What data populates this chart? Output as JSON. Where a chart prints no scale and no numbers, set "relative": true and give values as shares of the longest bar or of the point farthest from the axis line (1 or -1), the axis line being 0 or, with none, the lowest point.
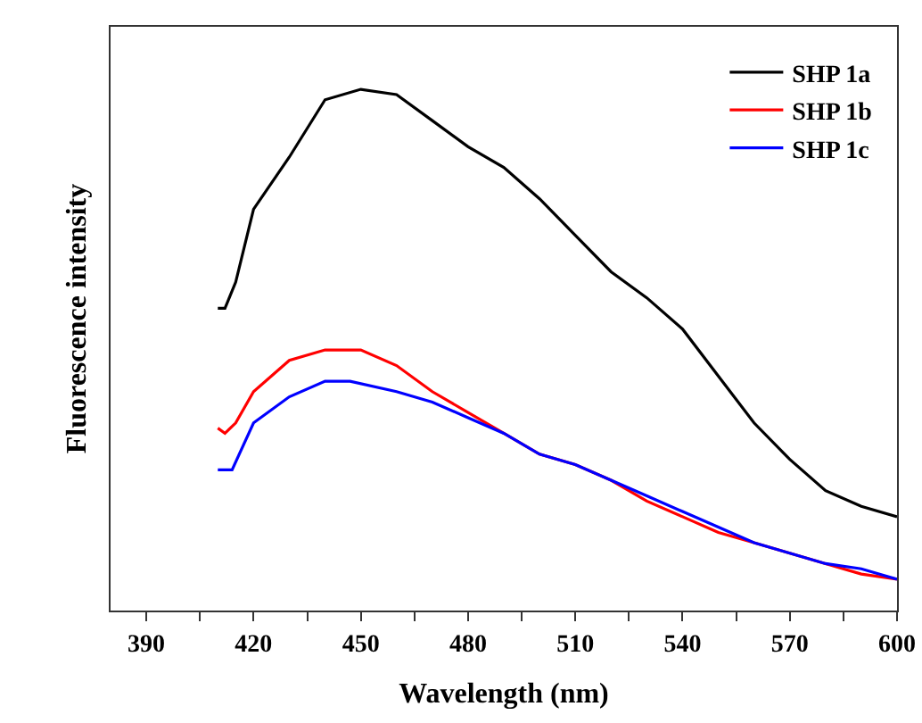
{
  "chart_data": {
    "type": "line",
    "relative": true,
    "xlabel": "Wavelength (nm)",
    "ylabel": "Fluorescence intensity",
    "xlim": [
      380,
      600
    ],
    "xticks": [
      390,
      {
        "value": 405,
        "label": null
      },
      420,
      {
        "value": 435,
        "label": null
      },
      450,
      {
        "value": 465,
        "label": null
      },
      480,
      {
        "value": 495,
        "label": null
      },
      510,
      {
        "value": 525,
        "label": null
      },
      540,
      {
        "value": 555,
        "label": null
      },
      570,
      {
        "value": 585,
        "label": null
      },
      600
    ],
    "legend": "top right",
    "grid": false,
    "marker": "none",
    "line_style": "solid",
    "series": [
      {
        "name": "SHP 1a",
        "color": "#000000",
        "x": [
          410,
          412,
          415,
          420,
          430,
          440,
          450,
          460,
          470,
          480,
          490,
          500,
          510,
          520,
          530,
          540,
          550,
          560,
          570,
          580,
          590,
          600
        ],
        "values": [
          0.58,
          0.58,
          0.63,
          0.77,
          0.87,
          0.98,
          1.0,
          0.99,
          0.94,
          0.89,
          0.85,
          0.79,
          0.72,
          0.65,
          0.6,
          0.54,
          0.45,
          0.36,
          0.29,
          0.23,
          0.2,
          0.18
        ]
      },
      {
        "name": "SHP 1b",
        "color": "#ff0000",
        "x": [
          410,
          412,
          415,
          420,
          430,
          440,
          450,
          460,
          470,
          480,
          490,
          500,
          510,
          520,
          530,
          540,
          550,
          560,
          570,
          580,
          590,
          600
        ],
        "values": [
          0.35,
          0.34,
          0.36,
          0.42,
          0.48,
          0.5,
          0.5,
          0.47,
          0.42,
          0.38,
          0.34,
          0.3,
          0.28,
          0.25,
          0.21,
          0.18,
          0.15,
          0.13,
          0.11,
          0.09,
          0.07,
          0.06
        ]
      },
      {
        "name": "SHP 1c",
        "color": "#0000ff",
        "x": [
          410,
          414,
          420,
          430,
          440,
          447,
          460,
          470,
          480,
          490,
          500,
          510,
          520,
          530,
          540,
          550,
          560,
          570,
          580,
          590,
          600
        ],
        "values": [
          0.27,
          0.27,
          0.36,
          0.41,
          0.44,
          0.44,
          0.42,
          0.4,
          0.37,
          0.34,
          0.3,
          0.28,
          0.25,
          0.22,
          0.19,
          0.16,
          0.13,
          0.11,
          0.09,
          0.08,
          0.06
        ]
      }
    ]
  }
}
